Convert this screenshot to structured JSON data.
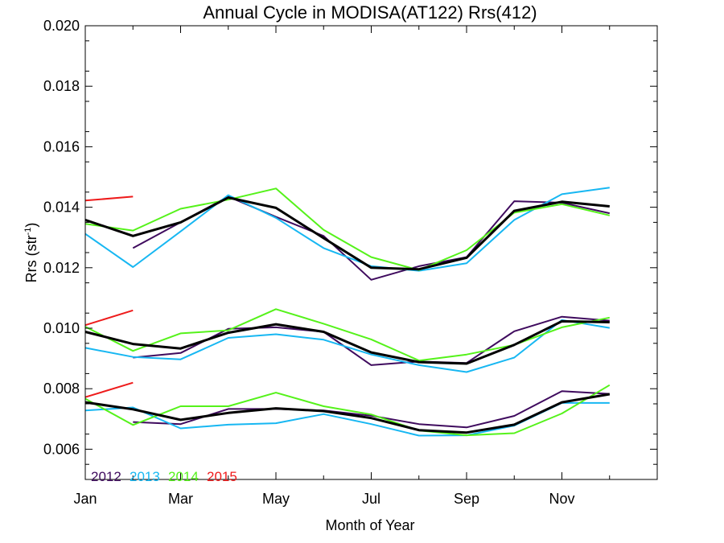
{
  "chart_data": {
    "type": "line",
    "title": "Annual Cycle in MODISA(AT122) Rrs(412)",
    "xlabel": "Month of Year",
    "ylabel": "Rrs (str",
    "ylabel_sup": "-1",
    "ylabel_close": ")",
    "xlim": [
      1,
      13
    ],
    "ylim": [
      0.005,
      0.02
    ],
    "x_ticks": [
      1,
      3,
      5,
      7,
      9,
      11
    ],
    "x_tick_labels": [
      "Jan",
      "Mar",
      "May",
      "Jul",
      "Sep",
      "Nov"
    ],
    "y_ticks": [
      0.006,
      0.008,
      0.01,
      0.012,
      0.014,
      0.016,
      0.018,
      0.02
    ],
    "y_tick_labels": [
      "0.006",
      "0.008",
      "0.010",
      "0.012",
      "0.014",
      "0.016",
      "0.018",
      "0.020"
    ],
    "grid": false,
    "legend_position": "bottom-left",
    "legend": [
      {
        "label": "2012",
        "color": "#3f0b5e"
      },
      {
        "label": "2013",
        "color": "#17b7f2"
      },
      {
        "label": "2014",
        "color": "#55f21a"
      },
      {
        "label": "2015",
        "color": "#ee1b1b"
      }
    ],
    "series": [
      {
        "group": "upper",
        "legend_index": 0,
        "color": "#3f0b5e",
        "width": 2,
        "x": [
          2,
          3,
          4,
          5,
          6,
          7,
          8,
          9,
          10,
          11,
          12
        ],
        "y": [
          0.01265,
          0.0135,
          0.01435,
          0.01368,
          0.01305,
          0.0116,
          0.01205,
          0.01235,
          0.0142,
          0.01415,
          0.0138
        ]
      },
      {
        "group": "upper",
        "legend_index": 1,
        "color": "#17b7f2",
        "width": 2,
        "x": [
          1,
          2,
          3,
          4,
          5,
          6,
          7,
          8,
          9,
          10,
          11,
          12
        ],
        "y": [
          0.01312,
          0.01202,
          0.0132,
          0.0144,
          0.01365,
          0.01265,
          0.01205,
          0.0119,
          0.01215,
          0.01358,
          0.01443,
          0.01465
        ]
      },
      {
        "group": "upper",
        "legend_index": 2,
        "color": "#55f21a",
        "width": 2,
        "x": [
          1,
          2,
          3,
          4,
          5,
          6,
          7,
          8,
          9,
          10,
          11,
          12
        ],
        "y": [
          0.01345,
          0.01323,
          0.01395,
          0.01425,
          0.01462,
          0.01325,
          0.01235,
          0.01192,
          0.01258,
          0.01382,
          0.0141,
          0.01373
        ]
      },
      {
        "group": "upper",
        "legend_index": 3,
        "color": "#ee1b1b",
        "width": 2,
        "x": [
          1,
          2
        ],
        "y": [
          0.01422,
          0.01435
        ]
      },
      {
        "group": "upper",
        "legend_index": null,
        "color": "#000000",
        "width": 3,
        "x": [
          1,
          2,
          3,
          4,
          5,
          6,
          7,
          8,
          9,
          10,
          11,
          12
        ],
        "y": [
          0.01358,
          0.01305,
          0.0135,
          0.01432,
          0.01398,
          0.01298,
          0.012,
          0.01195,
          0.01233,
          0.01388,
          0.01418,
          0.01403
        ]
      },
      {
        "group": "middle",
        "legend_index": 0,
        "color": "#3f0b5e",
        "width": 2,
        "x": [
          2,
          3,
          4,
          5,
          6,
          7,
          8,
          9,
          10,
          11,
          12
        ],
        "y": [
          0.00903,
          0.00918,
          0.00998,
          0.01003,
          0.00988,
          0.00878,
          0.0089,
          0.00885,
          0.0099,
          0.01038,
          0.01025
        ]
      },
      {
        "group": "middle",
        "legend_index": 1,
        "color": "#17b7f2",
        "width": 2,
        "x": [
          1,
          2,
          3,
          4,
          5,
          6,
          7,
          8,
          9,
          10,
          11,
          12
        ],
        "y": [
          0.00935,
          0.00905,
          0.00897,
          0.00968,
          0.0098,
          0.00962,
          0.00913,
          0.00878,
          0.00855,
          0.00903,
          0.01027,
          0.01001
        ]
      },
      {
        "group": "middle",
        "legend_index": 2,
        "color": "#55f21a",
        "width": 2,
        "x": [
          1,
          2,
          3,
          4,
          5,
          6,
          7,
          8,
          9,
          10,
          11,
          12
        ],
        "y": [
          0.01005,
          0.00925,
          0.00983,
          0.00993,
          0.01063,
          0.01015,
          0.00963,
          0.00893,
          0.00913,
          0.00945,
          0.01003,
          0.01035
        ]
      },
      {
        "group": "middle",
        "legend_index": 3,
        "color": "#ee1b1b",
        "width": 2,
        "x": [
          1,
          2
        ],
        "y": [
          0.0101,
          0.01059
        ]
      },
      {
        "group": "middle",
        "legend_index": null,
        "color": "#000000",
        "width": 3,
        "x": [
          1,
          2,
          3,
          4,
          5,
          6,
          7,
          8,
          9,
          10,
          11,
          12
        ],
        "y": [
          0.00988,
          0.00948,
          0.00933,
          0.00985,
          0.01013,
          0.00988,
          0.0092,
          0.00888,
          0.00883,
          0.00945,
          0.01023,
          0.0102
        ]
      },
      {
        "group": "lower",
        "legend_index": 0,
        "color": "#3f0b5e",
        "width": 2,
        "x": [
          2,
          3,
          4,
          5,
          6,
          7,
          8,
          9,
          10,
          11,
          12
        ],
        "y": [
          0.0069,
          0.00683,
          0.00733,
          0.00733,
          0.00728,
          0.00711,
          0.00683,
          0.00672,
          0.0071,
          0.00792,
          0.00783
        ]
      },
      {
        "group": "lower",
        "legend_index": 1,
        "color": "#17b7f2",
        "width": 2,
        "x": [
          1,
          2,
          3,
          4,
          5,
          6,
          7,
          8,
          9,
          10,
          11,
          12
        ],
        "y": [
          0.00728,
          0.00738,
          0.00669,
          0.00681,
          0.00686,
          0.00716,
          0.00683,
          0.00645,
          0.00646,
          0.00678,
          0.00753,
          0.00753
        ]
      },
      {
        "group": "lower",
        "legend_index": 2,
        "color": "#55f21a",
        "width": 2,
        "x": [
          1,
          2,
          3,
          4,
          5,
          6,
          7,
          8,
          9,
          10,
          11,
          12
        ],
        "y": [
          0.00767,
          0.0068,
          0.00742,
          0.00742,
          0.00787,
          0.00742,
          0.00715,
          0.00662,
          0.00646,
          0.00653,
          0.00718,
          0.00812
        ]
      },
      {
        "group": "lower",
        "legend_index": 3,
        "color": "#ee1b1b",
        "width": 2,
        "x": [
          1,
          2
        ],
        "y": [
          0.00772,
          0.0082
        ]
      },
      {
        "group": "lower",
        "legend_index": null,
        "color": "#000000",
        "width": 3,
        "x": [
          1,
          2,
          3,
          4,
          5,
          6,
          7,
          8,
          9,
          10,
          11,
          12
        ],
        "y": [
          0.00755,
          0.00732,
          0.00697,
          0.0072,
          0.00735,
          0.00726,
          0.00703,
          0.00663,
          0.00655,
          0.00681,
          0.00755,
          0.00782
        ]
      }
    ]
  }
}
